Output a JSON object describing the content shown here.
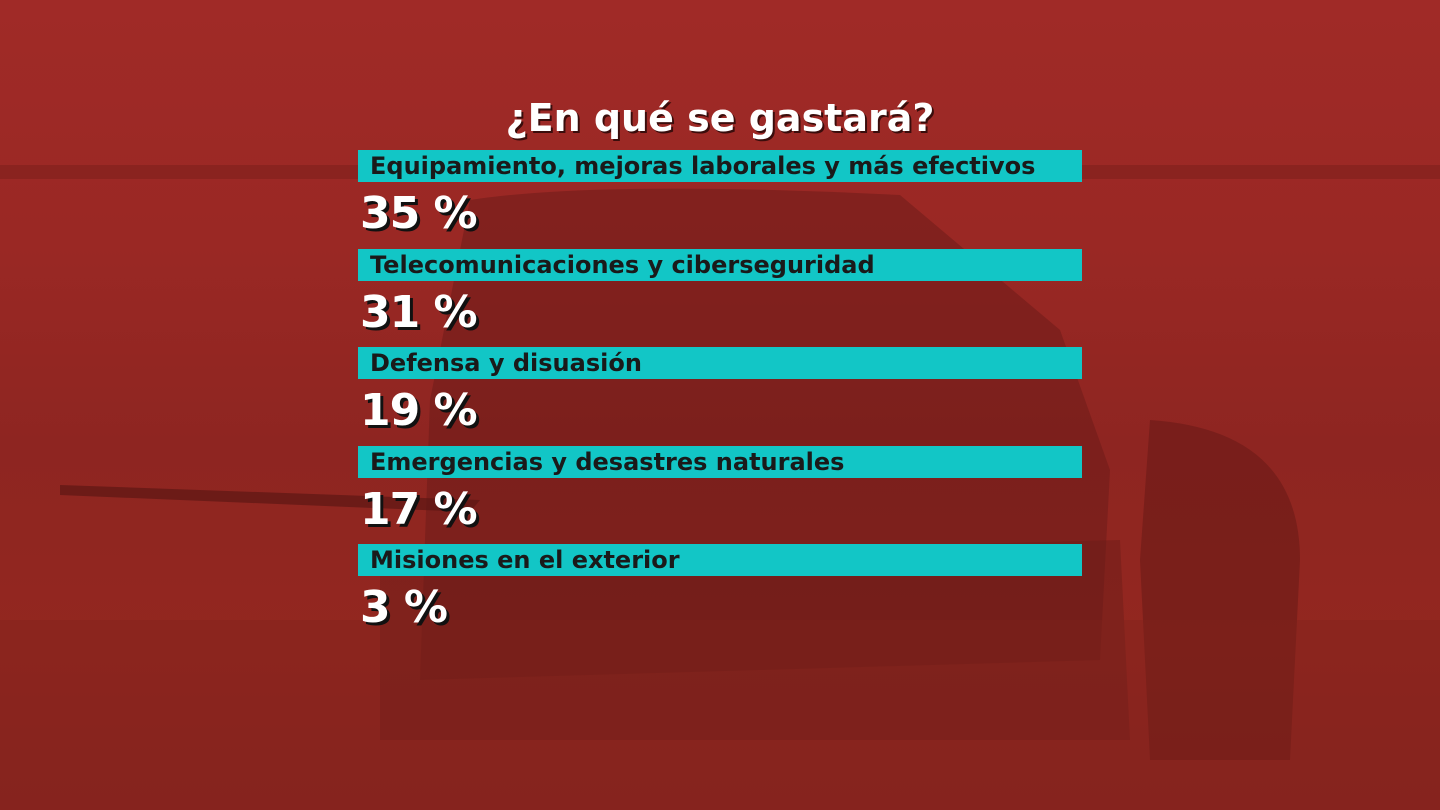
{
  "title": "¿En qué se gastará?",
  "items": [
    {
      "label": "Equipamiento, mejoras laborales y más efectivos",
      "share": "35 %"
    },
    {
      "label": "Telecomunicaciones y ciberseguridad",
      "share": "31 %"
    },
    {
      "label": "Defensa y disuasión",
      "share": "19 %"
    },
    {
      "label": "Emergencias y desastres naturales",
      "share": "17 %"
    },
    {
      "label": "Misiones en el exterior",
      "share": "3 %"
    }
  ]
}
